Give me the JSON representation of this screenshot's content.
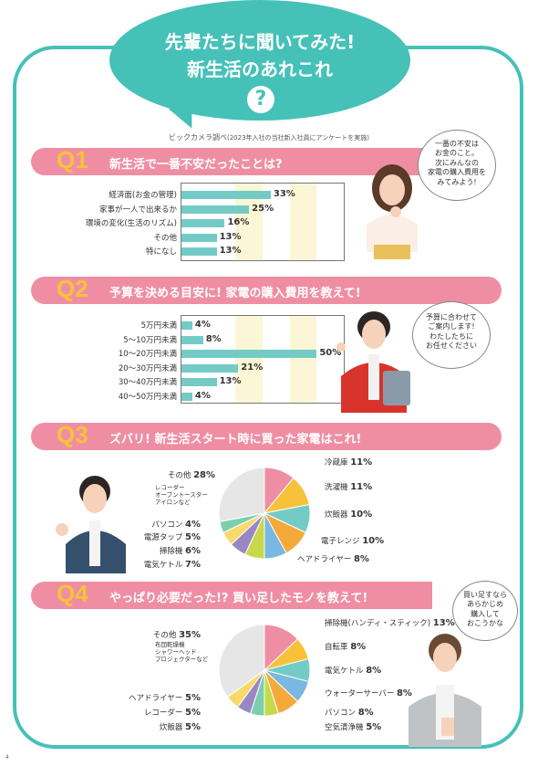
{
  "header": {
    "title_line1": "先輩たちに聞いてみた!",
    "title_line2": "新生活のあれこれ",
    "icon": "question-icon",
    "icon_text": "?",
    "credit_main": "ビックカメラ調べ",
    "credit_note": "(2023年入社の当社新入社員にアンケートを実施)"
  },
  "colors": {
    "teal": "#45c1b8",
    "pink": "#ef8ea3",
    "yellow": "#f7c23a",
    "bar": "#74cbc6"
  },
  "q1": {
    "num": "Q1",
    "text": "新生活で一番不安だったことは?",
    "speech": [
      "一番の不安は",
      "お金のこと。",
      "次にみんなの",
      "家電の購入費用を",
      "みてみよう!"
    ]
  },
  "q2": {
    "num": "Q2",
    "text": "予算を決める目安に! 家電の購入費用を教えて!",
    "speech": [
      "予算に合わせて",
      "ご案内します!",
      "わたしたちに",
      "お任せください"
    ]
  },
  "q3": {
    "num": "Q3",
    "text": "ズバリ! 新生活スタート時に買った家電はこれ!",
    "other_note": [
      "レコーダー",
      "オーブントースター",
      "アイロンなど"
    ]
  },
  "q4": {
    "num": "Q4",
    "text": "やっぱり必要だった!? 買い足したモノを教えて!",
    "speech": [
      "買い足すなら",
      "あらかじめ",
      "購入して",
      "おこうかな"
    ],
    "other_note": [
      "布団乾燥機",
      "シャワーヘッド",
      "プロジェクターなど"
    ]
  },
  "page_number": "4",
  "chart_data": [
    {
      "type": "bar",
      "orientation": "horizontal",
      "categories": [
        "経済面(お金の管理)",
        "家事が一人で出来るか",
        "環境の変化(生活のリズム)",
        "その他",
        "特になし"
      ],
      "values": [
        33,
        25,
        16,
        13,
        13
      ],
      "labels": [
        "33%",
        "25%",
        "16%",
        "13%",
        "13%"
      ],
      "xlim": [
        0,
        60
      ]
    },
    {
      "type": "bar",
      "orientation": "horizontal",
      "categories": [
        "5万円未満",
        "5〜10万円未満",
        "10〜20万円未満",
        "20〜30万円未満",
        "30〜40万円未満",
        "40〜50万円未満"
      ],
      "values": [
        4,
        8,
        50,
        21,
        13,
        4
      ],
      "labels": [
        "4%",
        "8%",
        "50%",
        "21%",
        "13%",
        "4%"
      ],
      "xlim": [
        0,
        60
      ]
    },
    {
      "type": "pie",
      "categories": [
        "冷蔵庫",
        "洗濯機",
        "炊飯器",
        "電子レンジ",
        "ヘアドライヤー",
        "電気ケトル",
        "掃除機",
        "電源タップ",
        "パソコン",
        "その他"
      ],
      "values": [
        11,
        11,
        10,
        10,
        8,
        7,
        6,
        5,
        4,
        28
      ],
      "labels": [
        "11%",
        "11%",
        "10%",
        "10%",
        "8%",
        "7%",
        "6%",
        "5%",
        "4%",
        "28%"
      ],
      "colors": [
        "#ef8ea3",
        "#f7c23a",
        "#74cbc6",
        "#f6a93b",
        "#79b8e0",
        "#c7d84a",
        "#9b86c4",
        "#f9d96b",
        "#7ccfae",
        "#e6e6e6"
      ]
    },
    {
      "type": "pie",
      "categories": [
        "掃除機(ハンディ・スティック)",
        "自転車",
        "電気ケトル",
        "ウォーターサーバー",
        "パソコン",
        "空気清浄機",
        "炊飯器",
        "レコーダー",
        "ヘアドライヤー",
        "その他"
      ],
      "values": [
        13,
        8,
        8,
        8,
        8,
        5,
        5,
        5,
        5,
        35
      ],
      "labels": [
        "13%",
        "8%",
        "8%",
        "8%",
        "8%",
        "5%",
        "5%",
        "5%",
        "5%",
        "35%"
      ],
      "colors": [
        "#ef8ea3",
        "#f7c23a",
        "#74cbc6",
        "#79b8e0",
        "#f6a93b",
        "#c7d84a",
        "#7ccfae",
        "#9b86c4",
        "#f9d96b",
        "#e6e6e6"
      ]
    }
  ]
}
